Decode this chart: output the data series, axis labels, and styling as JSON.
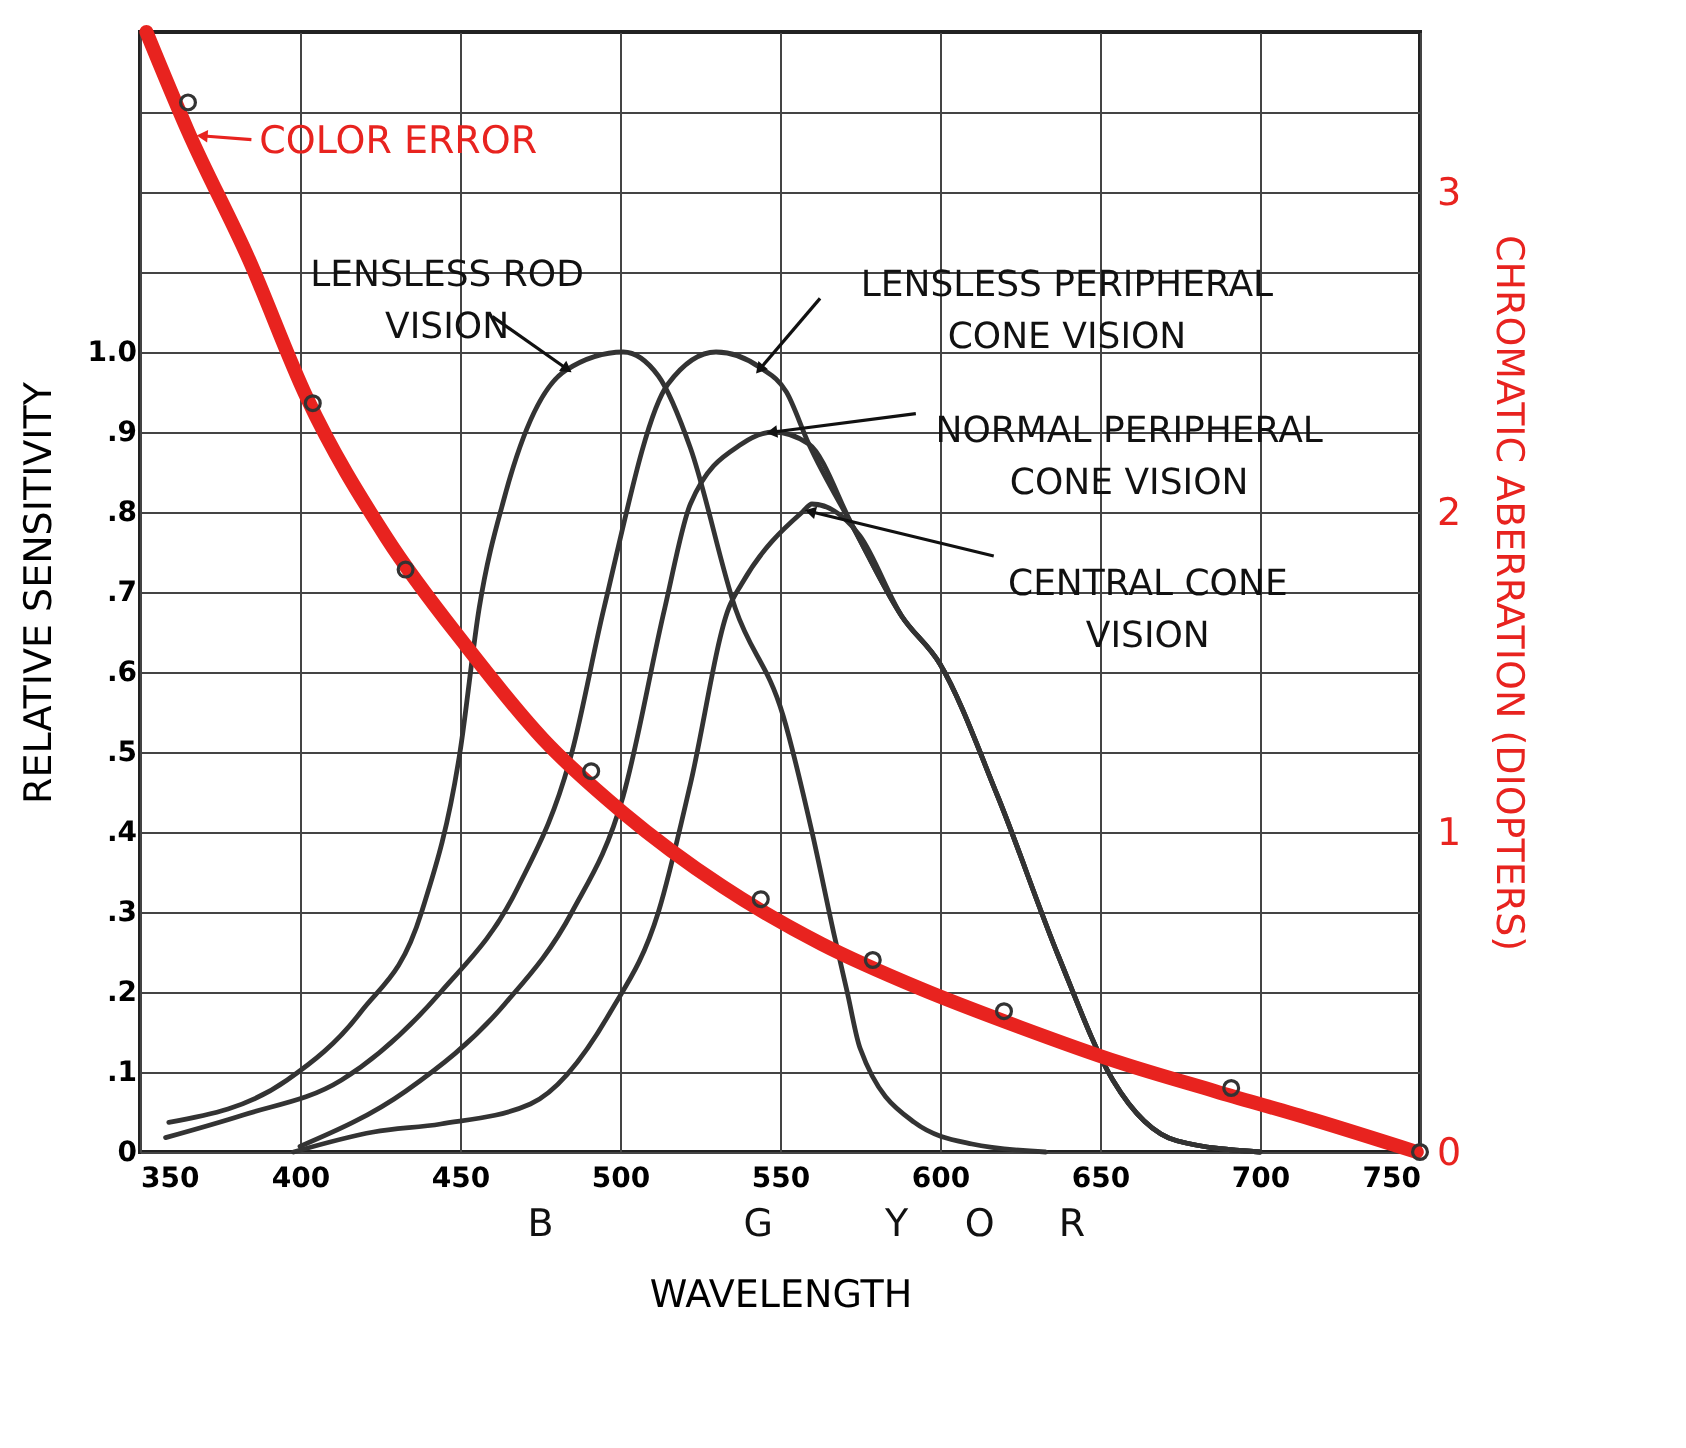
{
  "chart_data": {
    "type": "line",
    "xlabel": "WAVELENGTH",
    "ylabel": "RELATIVE SENSITIVITY",
    "y2label": "CHROMATIC ABERRATION (DIOPTERS)",
    "xlim": [
      350,
      750
    ],
    "xticks": [
      350,
      400,
      450,
      500,
      550,
      600,
      650,
      700,
      750
    ],
    "ylim": [
      0,
      1.4
    ],
    "yticks": [
      0,
      {
        "value": 0.1,
        "label": ".1"
      },
      {
        "value": 0.2,
        "label": ".2"
      },
      {
        "value": 0.3,
        "label": ".3"
      },
      {
        "value": 0.4,
        "label": ".4"
      },
      {
        "value": 0.5,
        "label": ".5"
      },
      {
        "value": 0.6,
        "label": ".6"
      },
      {
        "value": 0.7,
        "label": ".7"
      },
      {
        "value": 0.8,
        "label": ".8"
      },
      {
        "value": 0.9,
        "label": ".9"
      },
      {
        "value": 1.0,
        "label": "1.0"
      },
      {
        "value": 1.1,
        "label": null
      },
      {
        "value": 1.2,
        "label": null
      },
      {
        "value": 1.3,
        "label": null
      }
    ],
    "y2lim": [
      0,
      3.5
    ],
    "y2ticks": [
      0,
      1,
      2,
      3
    ],
    "grid": true,
    "series": [
      {
        "color": "#333333",
        "x": [
          359,
          396,
          419,
          438,
          450,
          456,
          464,
          483,
          501,
          512,
          522,
          536,
          551,
          560,
          567,
          571,
          575,
          592,
          610,
          633
        ],
        "values": [
          0.037,
          0.09,
          0.175,
          0.3,
          0.5,
          0.68,
          0.82,
          0.977,
          1.0,
          0.97,
          0.88,
          0.68,
          0.545,
          0.4,
          0.27,
          0.2,
          0.13,
          0.037,
          0.01,
          0
        ]
      },
      {
        "color": "#333333",
        "x": [
          358,
          382,
          413,
          444,
          468,
          485,
          495,
          515,
          530,
          544,
          552,
          559,
          573,
          588,
          600,
          618,
          637,
          654,
          674,
          700
        ],
        "values": [
          0.018,
          0.046,
          0.09,
          0.2,
          0.33,
          0.5,
          0.68,
          0.96,
          1.0,
          0.98,
          0.95,
          0.885,
          0.78,
          0.67,
          0.61,
          0.445,
          0.245,
          0.09,
          0.014,
          0
        ]
      },
      {
        "color": "#333333",
        "x": [
          400,
          433,
          464,
          485,
          501,
          514,
          522,
          538,
          548,
          559,
          573,
          588,
          600,
          618,
          637,
          654,
          674,
          700
        ],
        "values": [
          0.007,
          0.076,
          0.185,
          0.3,
          0.445,
          0.68,
          0.81,
          0.885,
          0.9,
          0.885,
          0.78,
          0.67,
          0.61,
          0.445,
          0.245,
          0.09,
          0.014,
          0
        ]
      },
      {
        "color": "#333333",
        "x": [
          398,
          423,
          444,
          472,
          497,
          512,
          522,
          534,
          538,
          557,
          560,
          575,
          588,
          600,
          618,
          637,
          654,
          674,
          700
        ],
        "values": [
          0,
          0.025,
          0.035,
          0.06,
          0.175,
          0.3,
          0.46,
          0.68,
          0.71,
          0.8,
          0.81,
          0.77,
          0.67,
          0.61,
          0.445,
          0.245,
          0.09,
          0.014,
          0
        ]
      },
      {
        "type": "line",
        "axis": "y2",
        "color": "#e8231f",
        "x": [
          352,
          365,
          384,
          402,
          427,
          452,
          476,
          501,
          532,
          563,
          594,
          625,
          656,
          686,
          717,
          749
        ],
        "values": [
          3.5,
          3.19,
          2.79,
          2.36,
          1.92,
          1.58,
          1.29,
          1.06,
          0.83,
          0.65,
          0.51,
          0.39,
          0.28,
          0.19,
          0.1,
          0
        ]
      },
      {
        "type": "scatter",
        "axis": "y2",
        "marker": "circle",
        "color": "#333333",
        "x": [
          365,
          404,
          433,
          491,
          544,
          579,
          620,
          691,
          750
        ],
        "values": [
          3.28,
          2.34,
          1.82,
          1.19,
          0.79,
          0.6,
          0.44,
          0.2,
          0
        ]
      }
    ],
    "annotations": [
      {
        "text": "COLOR ERROR",
        "x": 370,
        "y": 1.27
      },
      {
        "text": "LENSLESS ROD\nVISION",
        "x": 483,
        "y": 0.98
      },
      {
        "text": "LENSLESS PERIPHERAL\nCONE VISION",
        "x": 544,
        "y": 0.98
      },
      {
        "text": "NORMAL PERIPHERAL\nCONE VISION",
        "x": 548,
        "y": 0.9
      },
      {
        "text": "CENTRAL CONE\nVISION",
        "x": 560,
        "y": 0.8
      },
      "B",
      "G",
      "Y",
      "O",
      "R"
    ]
  }
}
